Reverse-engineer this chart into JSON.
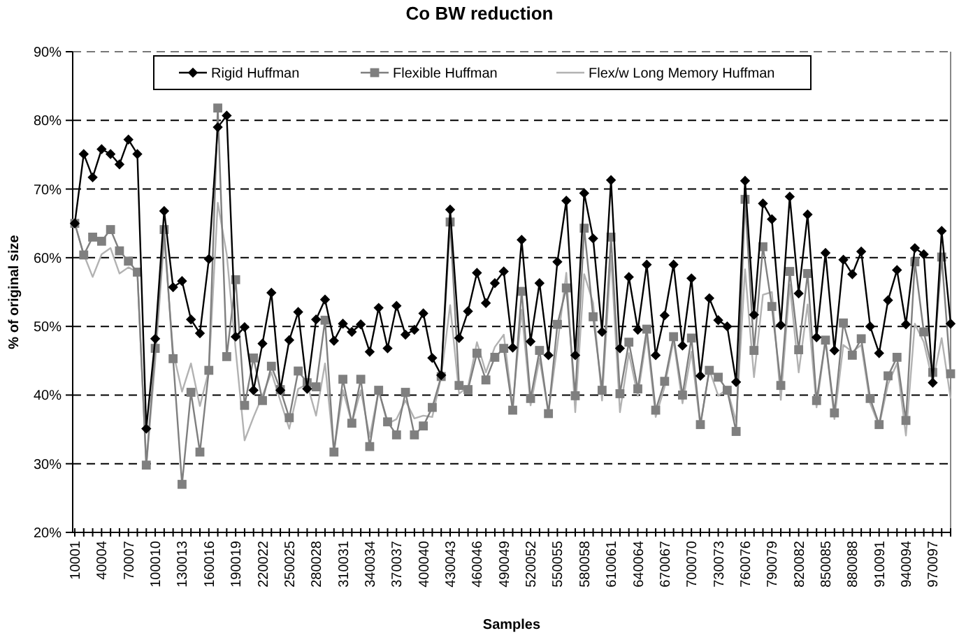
{
  "chart_data": {
    "type": "line",
    "title": "Co BW reduction",
    "xlabel": "Samples",
    "ylabel": "% of original size",
    "categories": [
      "10001",
      null,
      null,
      "40004",
      null,
      null,
      "70007",
      null,
      null,
      "100010",
      null,
      null,
      "130013",
      null,
      null,
      "160016",
      null,
      null,
      "190019",
      null,
      null,
      "220022",
      null,
      null,
      "250025",
      null,
      null,
      "280028",
      null,
      null,
      "310031",
      null,
      null,
      "340034",
      null,
      null,
      "370037",
      null,
      null,
      "400040",
      null,
      null,
      "430043",
      null,
      null,
      "460046",
      null,
      null,
      "490049",
      null,
      null,
      "520052",
      null,
      null,
      "550055",
      null,
      null,
      "580058",
      null,
      null,
      "610061",
      null,
      null,
      "640064",
      null,
      null,
      "670067",
      null,
      null,
      "700070",
      null,
      null,
      "730073",
      null,
      null,
      "760076",
      null,
      null,
      "790079",
      null,
      null,
      "820082",
      null,
      null,
      "850085",
      null,
      null,
      "880088",
      null,
      null,
      "910091",
      null,
      null,
      "940094",
      null,
      null,
      "970097",
      null,
      null
    ],
    "ylim": [
      20,
      90
    ],
    "yticks": [
      {
        "value": 20,
        "label": "20%"
      },
      {
        "value": 30,
        "label": "30%"
      },
      {
        "value": 40,
        "label": "40%"
      },
      {
        "value": 50,
        "label": "50%"
      },
      {
        "value": 60,
        "label": "60%"
      },
      {
        "value": 70,
        "label": "70%"
      },
      {
        "value": 80,
        "label": "80%"
      },
      {
        "value": 90,
        "label": "90%"
      }
    ],
    "grid": "y",
    "legend": "top",
    "line_style": "solid",
    "series": [
      {
        "name": "Rigid Huffman",
        "color": "#000000",
        "marker": "diamond",
        "values": [
          65,
          75.1,
          71.7,
          75.8,
          75.1,
          73.6,
          77.2,
          75.1,
          35.1,
          48.2,
          66.8,
          55.7,
          56.6,
          51,
          49,
          59.8,
          79,
          80.7,
          48.5,
          49.9,
          40.7,
          47.5,
          54.9,
          40.7,
          48,
          52.1,
          40.9,
          51,
          53.9,
          47.9,
          50.4,
          49.2,
          50.3,
          46.3,
          52.7,
          46.8,
          53,
          48.8,
          49.5,
          51.9,
          45.4,
          42.9,
          67,
          48.3,
          52.2,
          57.8,
          53.4,
          56.3,
          58,
          46.9,
          62.6,
          47.8,
          56.3,
          45.8,
          59.4,
          68.3,
          45.8,
          69.4,
          62.8,
          49.2,
          71.3,
          46.8,
          57.2,
          49.5,
          59,
          45.8,
          51.6,
          59,
          47.2,
          57,
          42.8,
          54.1,
          50.9,
          50,
          41.9,
          71.2,
          51.7,
          67.9,
          65.6,
          50.2,
          68.9,
          54.8,
          66.3,
          48.4,
          60.7,
          46.5,
          59.7,
          57.6,
          60.9,
          50,
          46.1,
          53.8,
          58.2,
          50.3,
          61.4,
          60.5,
          41.8,
          63.9,
          50.4
        ]
      },
      {
        "name": "Flexible Huffman",
        "color": "#7f7f7f",
        "marker": "square",
        "values": [
          65,
          60.4,
          63,
          62.4,
          64.1,
          61,
          59.5,
          57.9,
          29.8,
          46.8,
          64.1,
          45.3,
          27,
          40.4,
          31.7,
          43.6,
          81.8,
          45.6,
          56.8,
          38.5,
          45.4,
          39.2,
          44.2,
          40.8,
          36.7,
          43.5,
          41.8,
          41.2,
          50.9,
          31.7,
          42.3,
          35.9,
          42.3,
          32.5,
          40.7,
          36.1,
          34.2,
          40.4,
          34.2,
          35.5,
          38.2,
          42.7,
          65.2,
          41.4,
          40.8,
          46.1,
          42.2,
          45.5,
          46.8,
          37.8,
          55.1,
          39.5,
          46.5,
          37.3,
          50.3,
          55.6,
          39.9,
          64.3,
          51.4,
          40.7,
          63,
          40.2,
          47.7,
          40.9,
          49.6,
          37.8,
          42,
          48.5,
          40,
          48.3,
          35.7,
          43.6,
          42.6,
          40.7,
          34.7,
          68.5,
          46.5,
          61.6,
          52.9,
          41.4,
          58,
          46.6,
          57.7,
          39.2,
          48,
          37.4,
          50.5,
          45.8,
          48.2,
          39.5,
          35.7,
          42.8,
          45.5,
          36.3,
          59.4,
          49.2,
          43.3,
          60.1,
          43.1
        ]
      },
      {
        "name": "Flex/w Long Memory Huffman",
        "color": "#b2b2b2",
        "marker": "none",
        "values": [
          65,
          60.5,
          57.2,
          60.5,
          61.4,
          57.7,
          58.6,
          57.9,
          29.7,
          44.9,
          62.9,
          46.3,
          40.5,
          44.6,
          38.4,
          43.6,
          68,
          60.5,
          46.6,
          33.4,
          36.8,
          39.9,
          43.3,
          39.2,
          35.1,
          40.9,
          41.6,
          37,
          44.6,
          31.7,
          40.7,
          35.9,
          40.7,
          33.9,
          40.7,
          35.8,
          36.5,
          39.2,
          36.6,
          37,
          36.8,
          42.7,
          53.1,
          40.2,
          41.2,
          47.7,
          43.3,
          47,
          48.8,
          38.2,
          52.4,
          38.5,
          45.3,
          37.5,
          47.3,
          57.8,
          37.5,
          57.6,
          53.4,
          39.2,
          60.3,
          37.5,
          46.1,
          39.9,
          48.7,
          36.8,
          41.2,
          48,
          38.8,
          46.3,
          35.5,
          43.7,
          39.9,
          40.9,
          36.1,
          58.3,
          42.6,
          54.6,
          55,
          39.3,
          56.1,
          43.3,
          53.2,
          38.2,
          48,
          36.5,
          47.3,
          46.3,
          47.3,
          38.8,
          35.5,
          41.6,
          44.6,
          34.1,
          50.4,
          47.7,
          41.9,
          48.3,
          39.5
        ]
      }
    ]
  }
}
